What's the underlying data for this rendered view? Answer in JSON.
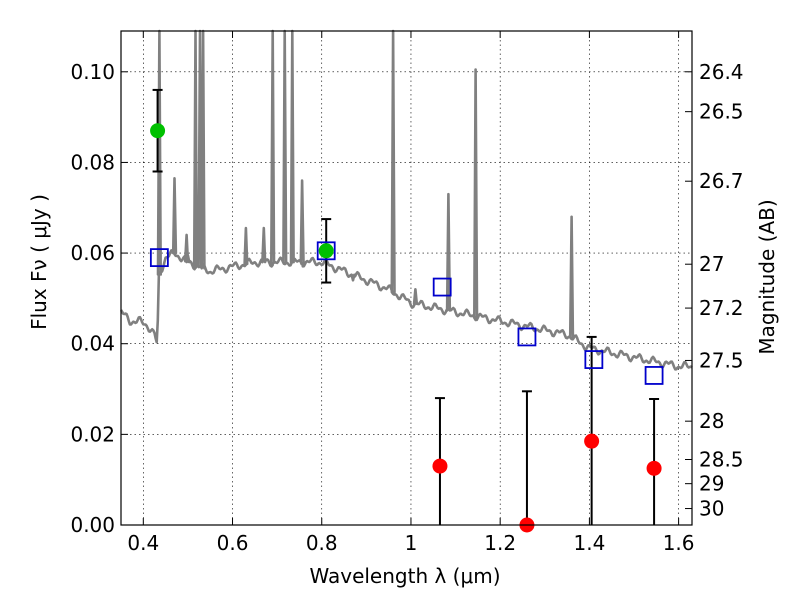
{
  "chart_data": {
    "type": "scatter",
    "title": "",
    "xlabel": "Wavelength  λ (μm)",
    "ylabel": "Flux  Fν  ( μJy )",
    "y2label": "Magnitude (AB)",
    "xlim": [
      0.35,
      1.63
    ],
    "ylim": [
      0.0,
      0.109
    ],
    "grid": true,
    "xticks": [
      0.4,
      0.6,
      0.8,
      1.0,
      1.2,
      1.4,
      1.6
    ],
    "xtick_labels": [
      "0.4",
      "0.6",
      "0.8",
      "1",
      "1.2",
      "1.4",
      "1.6"
    ],
    "yticks": [
      0.0,
      0.02,
      0.04,
      0.06,
      0.08,
      0.1
    ],
    "ytick_labels": [
      "0.00",
      "0.02",
      "0.04",
      "0.06",
      "0.08",
      "0.10"
    ],
    "y2ticks": [
      26.4,
      26.5,
      26.7,
      27,
      27.2,
      27.5,
      28,
      28.5,
      29,
      30
    ],
    "y2tick_labels": [
      "26.4",
      "26.5",
      "26.7",
      "27",
      "27.2",
      "27.5",
      "28",
      "28.5",
      "29",
      "30"
    ],
    "series": [
      {
        "kind": "model-spectrum",
        "color": "#808080",
        "x": [
          0.35,
          0.37,
          0.39,
          0.41,
          0.425,
          0.43,
          0.432,
          0.435,
          0.45,
          0.47,
          0.5,
          0.55,
          0.6,
          0.65,
          0.7,
          0.75,
          0.8,
          0.85,
          0.9,
          0.95,
          1.0,
          1.05,
          1.1,
          1.15,
          1.2,
          1.25,
          1.3,
          1.35,
          1.4,
          1.45,
          1.5,
          1.55,
          1.6,
          1.63
        ],
        "y": [
          0.047,
          0.045,
          0.045,
          0.044,
          0.042,
          0.04,
          0.0425,
          0.055,
          0.059,
          0.06,
          0.058,
          0.056,
          0.057,
          0.058,
          0.058,
          0.058,
          0.058,
          0.056,
          0.054,
          0.052,
          0.049,
          0.048,
          0.047,
          0.046,
          0.045,
          0.044,
          0.043,
          0.042,
          0.039,
          0.038,
          0.037,
          0.036,
          0.035,
          0.035
        ],
        "lines": [
          {
            "x": 0.436,
            "peak": 0.109
          },
          {
            "x": 0.47,
            "peak": 0.0765
          },
          {
            "x": 0.497,
            "peak": 0.064
          },
          {
            "x": 0.5,
            "peak": 0.0595
          },
          {
            "x": 0.517,
            "peak": 0.109
          },
          {
            "x": 0.527,
            "peak": 0.109
          },
          {
            "x": 0.534,
            "peak": 0.109
          },
          {
            "x": 0.63,
            "peak": 0.0655
          },
          {
            "x": 0.67,
            "peak": 0.0655
          },
          {
            "x": 0.69,
            "peak": 0.109
          },
          {
            "x": 0.717,
            "peak": 0.109
          },
          {
            "x": 0.734,
            "peak": 0.109
          },
          {
            "x": 0.756,
            "peak": 0.076
          },
          {
            "x": 0.87,
            "peak": 0.054
          },
          {
            "x": 0.96,
            "peak": 0.109
          },
          {
            "x": 1.01,
            "peak": 0.052
          },
          {
            "x": 1.084,
            "peak": 0.073
          },
          {
            "x": 1.145,
            "peak": 0.1005
          },
          {
            "x": 1.36,
            "peak": 0.068
          }
        ]
      },
      {
        "kind": "model-photometry",
        "marker": "open-square",
        "color": "#0000cc",
        "x": [
          0.436,
          0.81,
          1.07,
          1.26,
          1.41,
          1.545
        ],
        "y": [
          0.059,
          0.0605,
          0.0525,
          0.0415,
          0.0365,
          0.033
        ]
      },
      {
        "kind": "detections",
        "marker": "filled-circle",
        "color": "#00c000",
        "x": [
          0.432,
          0.81
        ],
        "y": [
          0.087,
          0.0605
        ],
        "err_low": [
          0.078,
          0.0535
        ],
        "err_high": [
          0.096,
          0.0675
        ]
      },
      {
        "kind": "non-detections",
        "marker": "filled-circle",
        "color": "#ff0000",
        "x": [
          1.065,
          1.26,
          1.405,
          1.545
        ],
        "y": [
          0.013,
          0.0,
          0.0185,
          0.0125
        ],
        "err_low": [
          0.0,
          0.0,
          0.0,
          0.0
        ],
        "err_high": [
          0.028,
          0.0295,
          0.0415,
          0.0278
        ]
      }
    ]
  }
}
